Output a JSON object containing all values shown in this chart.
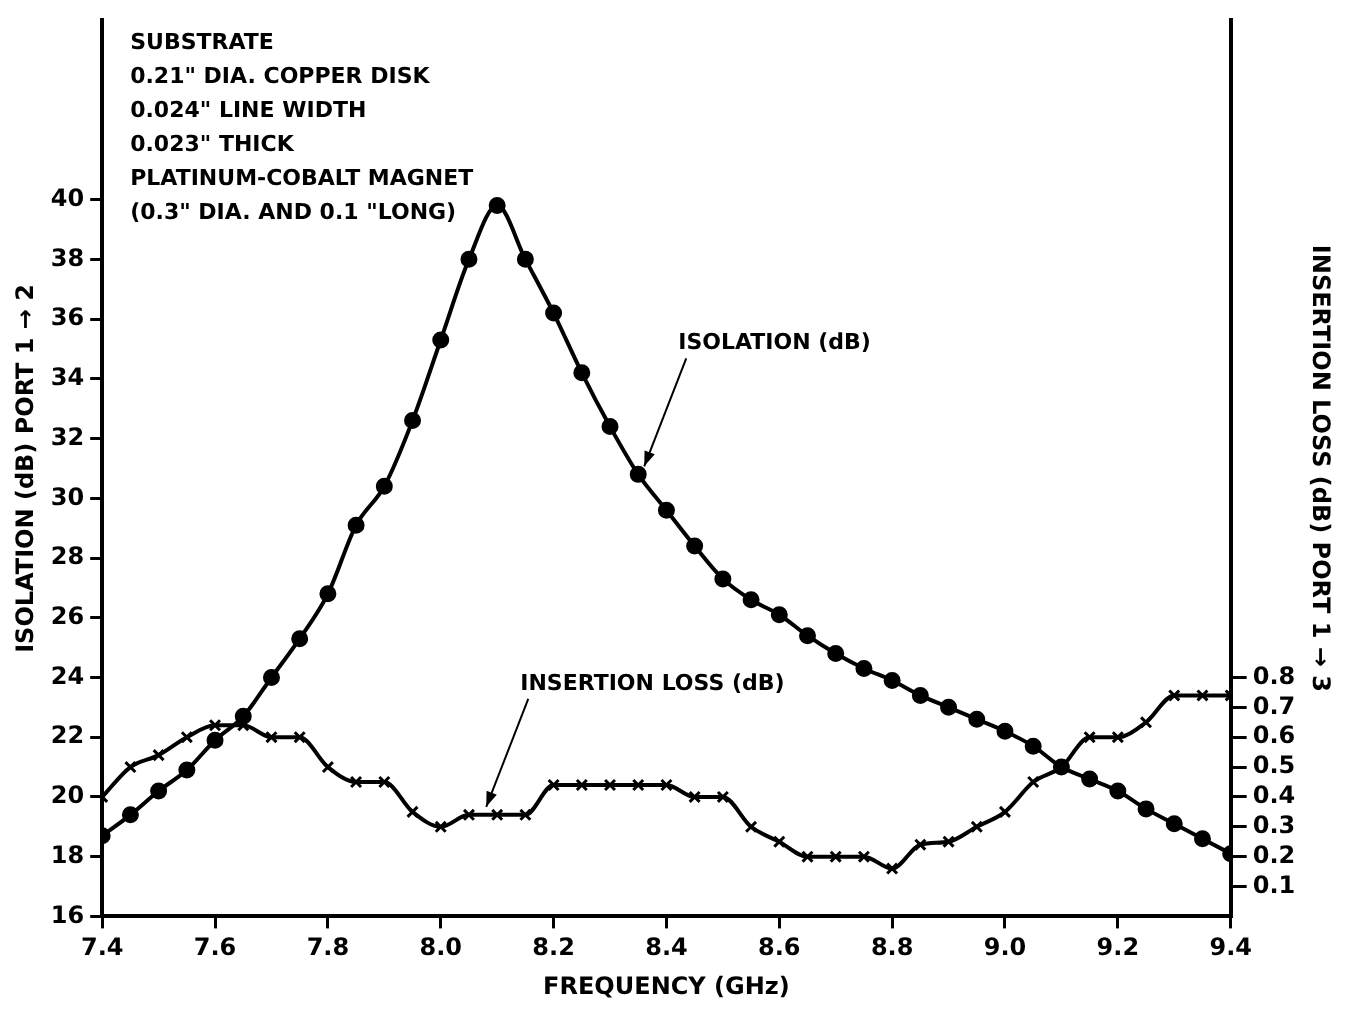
{
  "chart_data": {
    "type": "line",
    "xlabel": "FREQUENCY (GHz)",
    "ylabel": "ISOLATION (dB) PORT 1 → 2",
    "y2label": "INSERTION LOSS (dB) PORT 1 → 3",
    "x": [
      7.4,
      7.45,
      7.5,
      7.55,
      7.6,
      7.65,
      7.7,
      7.75,
      7.8,
      7.85,
      7.9,
      7.95,
      8.0,
      8.05,
      8.1,
      8.15,
      8.2,
      8.25,
      8.3,
      8.35,
      8.4,
      8.45,
      8.5,
      8.55,
      8.6,
      8.65,
      8.7,
      8.75,
      8.8,
      8.85,
      8.9,
      8.95,
      9.0,
      9.05,
      9.1,
      9.15,
      9.2,
      9.25,
      9.3,
      9.35,
      9.4
    ],
    "series": [
      {
        "color": "#000000",
        "marker": "circle",
        "values": [
          18.7,
          19.4,
          20.2,
          20.9,
          21.9,
          22.7,
          24.0,
          25.3,
          26.8,
          29.1,
          30.4,
          32.6,
          35.3,
          38.0,
          39.8,
          38.0,
          36.2,
          34.2,
          32.4,
          30.8,
          29.6,
          28.4,
          27.3,
          26.6,
          26.1,
          25.4,
          24.8,
          24.3,
          23.9,
          23.4,
          23.0,
          22.6,
          22.2,
          21.7,
          21.0,
          20.6,
          20.2,
          19.6,
          19.1,
          18.6,
          18.1
        ]
      },
      {
        "color": "#000000",
        "marker": "cross",
        "axis": "y2",
        "values": [
          0.4,
          0.5,
          0.54,
          0.6,
          0.64,
          0.64,
          0.6,
          0.6,
          0.5,
          0.45,
          0.45,
          0.35,
          0.3,
          0.34,
          0.34,
          0.34,
          0.44,
          0.44,
          0.44,
          0.44,
          0.44,
          0.4,
          0.4,
          0.3,
          0.25,
          0.2,
          0.2,
          0.2,
          0.16,
          0.24,
          0.25,
          0.3,
          0.35,
          0.45,
          0.5,
          0.6,
          0.6,
          0.65,
          0.74,
          0.74,
          0.74
        ]
      }
    ],
    "xlim": [
      7.4,
      9.4
    ],
    "xticks": [
      7.4,
      7.6,
      7.8,
      {
        "value": 8,
        "label": "8.0"
      },
      8.2,
      8.4,
      8.6,
      8.8,
      {
        "value": 9,
        "label": "9.0"
      },
      9.2,
      9.4
    ],
    "ylim": [
      16,
      46
    ],
    "yticks": [
      16,
      18,
      20,
      22,
      24,
      26,
      28,
      30,
      32,
      34,
      36,
      38,
      40
    ],
    "y2lim": [
      0,
      3
    ],
    "y2ticks": [
      0.1,
      0.2,
      0.3,
      0.4,
      0.5,
      0.6,
      0.7,
      0.8
    ],
    "grid": false,
    "legend": false,
    "annotations": [
      "SUBSTRATE",
      "0.21\" DIA. COPPER DISK",
      "0.024\" LINE WIDTH",
      "0.023\" THICK",
      "PLATINUM-COBALT MAGNET",
      "(0.3\" DIA. AND 0.1 \"LONG)",
      {
        "text": "ISOLATION (dB)",
        "x": 8.35,
        "y": 30.8
      },
      {
        "text": "INSERTION LOSS (dB)",
        "x": 8.07,
        "y": 19.4
      }
    ]
  }
}
